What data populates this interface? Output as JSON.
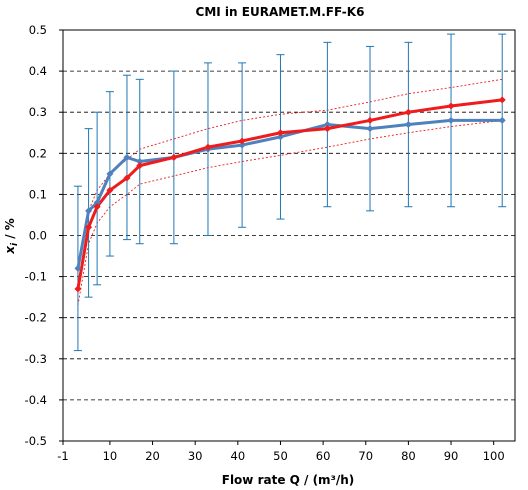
{
  "chart_data": {
    "type": "line",
    "title": "CMI in EURAMET.M.FF-K6",
    "xlabel": "Flow rate Q / (m³/h)",
    "ylabel_main": "x",
    "ylabel_sub": "i",
    "ylabel_rest": " / %",
    "xlim": [
      -1,
      105
    ],
    "ylim": [
      -0.5,
      0.5
    ],
    "x_ticks": [
      -1,
      10,
      20,
      30,
      40,
      50,
      60,
      70,
      80,
      90,
      100
    ],
    "y_ticks": [
      0.5,
      0.4,
      0.3,
      0.2,
      0.1,
      0.0,
      -0.1,
      -0.2,
      -0.3,
      -0.4,
      -0.5
    ],
    "y_tick_labels": [
      "0.5",
      "0.4",
      "0.3",
      "0.2",
      "0.1",
      "0.0",
      "-0.1",
      "-0.2",
      "-0.3",
      "-0.4",
      "-0.5"
    ],
    "grid": "horizontal dashed",
    "series": [
      {
        "color": "#4f81bd",
        "marker": "diamond",
        "x": [
          2.5,
          5,
          7,
          10,
          14,
          17,
          25,
          33,
          41,
          50,
          61,
          71,
          80,
          90,
          102
        ],
        "y": [
          -0.08,
          0.06,
          0.08,
          0.15,
          0.19,
          0.18,
          0.19,
          0.21,
          0.22,
          0.24,
          0.27,
          0.26,
          0.27,
          0.28,
          0.28
        ],
        "error_low": [
          -0.28,
          -0.15,
          -0.12,
          -0.05,
          -0.01,
          -0.02,
          -0.02,
          0.0,
          0.02,
          0.04,
          0.07,
          0.06,
          0.07,
          0.07,
          0.07
        ],
        "error_high": [
          0.12,
          0.26,
          0.3,
          0.35,
          0.39,
          0.38,
          0.4,
          0.42,
          0.42,
          0.44,
          0.47,
          0.46,
          0.47,
          0.49,
          0.49
        ]
      },
      {
        "color": "#ee1c1c",
        "marker": "diamond",
        "x": [
          2.5,
          5,
          7,
          10,
          14,
          17,
          25,
          33,
          41,
          50,
          61,
          71,
          80,
          90,
          102
        ],
        "y": [
          -0.13,
          0.02,
          0.07,
          0.11,
          0.14,
          0.17,
          0.19,
          0.215,
          0.23,
          0.25,
          0.26,
          0.28,
          0.3,
          0.315,
          0.33
        ]
      }
    ],
    "bands": [
      {
        "color": "#ee1c1c",
        "x": [
          2.5,
          5,
          7,
          10,
          14,
          17,
          25,
          33,
          41,
          50,
          61,
          71,
          80,
          90,
          102
        ],
        "upper": [
          -0.09,
          0.06,
          0.11,
          0.15,
          0.185,
          0.21,
          0.235,
          0.26,
          0.28,
          0.295,
          0.305,
          0.325,
          0.345,
          0.36,
          0.38
        ],
        "lower": [
          -0.17,
          -0.02,
          0.03,
          0.07,
          0.1,
          0.125,
          0.145,
          0.165,
          0.18,
          0.195,
          0.215,
          0.235,
          0.25,
          0.265,
          0.28
        ]
      }
    ]
  }
}
